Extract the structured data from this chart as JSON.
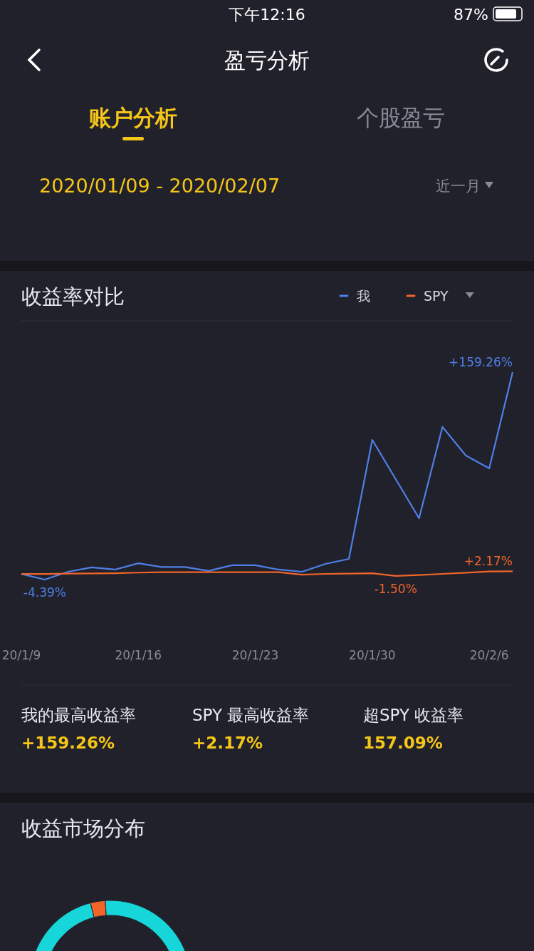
{
  "chart_data": [
    {
      "type": "line",
      "title": "收益率对比",
      "categories": [
        "20/1/9",
        null,
        null,
        null,
        null,
        "20/1/16",
        null,
        null,
        null,
        null,
        "20/1/23",
        null,
        null,
        null,
        null,
        "20/1/30",
        null,
        null,
        null,
        null,
        "20/2/6",
        null
      ],
      "series": [
        {
          "name": "我",
          "color": "#4f7fe8",
          "values": [
            0,
            -4.39,
            1.8,
            5.2,
            3.5,
            8.5,
            5.5,
            5.5,
            2.4,
            6.9,
            6.9,
            3.5,
            1.8,
            8.0,
            11.9,
            105.8,
            74.9,
            44.0,
            116.0,
            93.5,
            83.3,
            159.26
          ],
          "value_labels": [
            null,
            "-4.39%",
            null,
            null,
            null,
            null,
            null,
            null,
            null,
            null,
            null,
            null,
            null,
            null,
            null,
            null,
            null,
            null,
            null,
            null,
            null,
            "+159.26%"
          ]
        },
        {
          "name": "SPY",
          "color": "#f0652a",
          "values": [
            0,
            0,
            0.3,
            0.5,
            0.6,
            1.1,
            1.4,
            1.5,
            1.5,
            1.5,
            1.5,
            1.4,
            -0.5,
            0.1,
            0.3,
            0.6,
            -1.5,
            -0.8,
            0.1,
            1.0,
            2.0,
            2.17
          ],
          "value_labels": [
            null,
            null,
            null,
            null,
            null,
            null,
            null,
            null,
            null,
            null,
            null,
            null,
            null,
            null,
            null,
            null,
            "-1.50%",
            null,
            null,
            null,
            null,
            "+2.17%"
          ]
        }
      ],
      "legend": "top right",
      "marker": "none",
      "line_style": "solid",
      "annotations": [
        "下午12:16",
        "87%",
        "盈亏分析",
        "账户分析",
        "个股盈亏",
        "2020/01/09 - 2020/02/07",
        "近一月",
        "我的最高收益率",
        "+159.26%",
        "SPY 最高收益率",
        "+2.17%",
        "超SPY 收益率",
        "157.09%"
      ]
    },
    {
      "type": "donut",
      "title": "收益市场分布",
      "categories": [
        null,
        null
      ],
      "values": [
        3,
        97
      ],
      "colors": [
        "#f0652a",
        "#17d6d9"
      ]
    }
  ]
}
